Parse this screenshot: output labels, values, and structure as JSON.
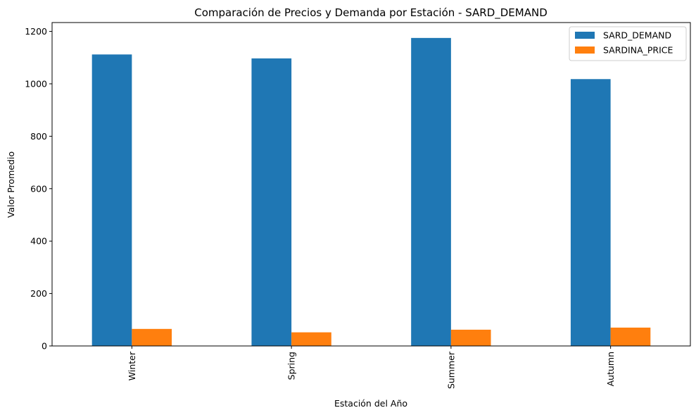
{
  "chart_data": {
    "type": "bar",
    "title": "Comparación de Precios y Demanda por Estación - SARD_DEMAND",
    "xlabel": "Estación del Año",
    "ylabel": "Valor Promedio",
    "categories": [
      "Winter",
      "Spring",
      "Summer",
      "Autumn"
    ],
    "series": [
      {
        "name": "SARD_DEMAND",
        "values": [
          1112,
          1097,
          1175,
          1018
        ],
        "color": "#1f77b4"
      },
      {
        "name": "SARDINA_PRICE",
        "values": [
          65,
          52,
          62,
          70
        ],
        "color": "#ff7f0e"
      }
    ],
    "ylim": [
      0,
      1200
    ],
    "yticks": [
      0,
      200,
      400,
      600,
      800,
      1000,
      1200
    ],
    "grid": false,
    "legend_position": "top-right"
  }
}
